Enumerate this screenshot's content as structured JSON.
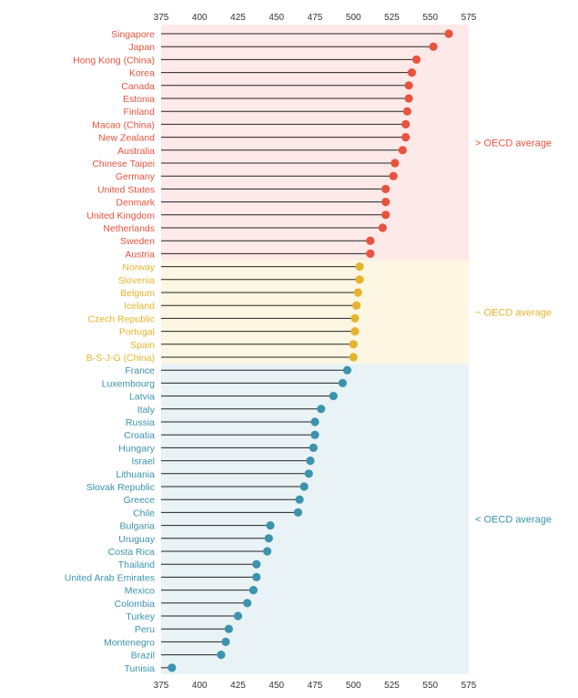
{
  "chart_data": {
    "type": "lollipop",
    "title": "",
    "xlabel": "",
    "ylabel": "",
    "xlim": [
      375,
      575
    ],
    "xticks": [
      375,
      400,
      425,
      450,
      475,
      500,
      525,
      550,
      575
    ],
    "groups": [
      {
        "key": "above",
        "label": "> OECD average",
        "color": "#e8533f",
        "band": "#fde9e7"
      },
      {
        "key": "similar",
        "label": "~ OECD average",
        "color": "#e5b42e",
        "band": "#fcf6e2"
      },
      {
        "key": "below",
        "label": "< OECD average",
        "color": "#3b93ad",
        "band": "#e9f2f5"
      }
    ],
    "rows": [
      {
        "country": "Singapore",
        "value": 562,
        "group": "above"
      },
      {
        "country": "Japan",
        "value": 552,
        "group": "above"
      },
      {
        "country": "Hong Kong (China)",
        "value": 541,
        "group": "above"
      },
      {
        "country": "Korea",
        "value": 538,
        "group": "above"
      },
      {
        "country": "Canada",
        "value": 536,
        "group": "above"
      },
      {
        "country": "Estonia",
        "value": 536,
        "group": "above"
      },
      {
        "country": "Finland",
        "value": 535,
        "group": "above"
      },
      {
        "country": "Macao (China)",
        "value": 534,
        "group": "above"
      },
      {
        "country": "New Zealand",
        "value": 534,
        "group": "above"
      },
      {
        "country": "Australia",
        "value": 532,
        "group": "above"
      },
      {
        "country": "Chinese Taipei",
        "value": 527,
        "group": "above"
      },
      {
        "country": "Germany",
        "value": 526,
        "group": "above"
      },
      {
        "country": "United States",
        "value": 521,
        "group": "above"
      },
      {
        "country": "Denmark",
        "value": 521,
        "group": "above"
      },
      {
        "country": "United Kingdom",
        "value": 521,
        "group": "above"
      },
      {
        "country": "Netherlands",
        "value": 519,
        "group": "above"
      },
      {
        "country": "Sweden",
        "value": 511,
        "group": "above"
      },
      {
        "country": "Austria",
        "value": 511,
        "group": "above"
      },
      {
        "country": "Norway",
        "value": 504,
        "group": "similar"
      },
      {
        "country": "Slovenia",
        "value": 504,
        "group": "similar"
      },
      {
        "country": "Belgium",
        "value": 503,
        "group": "similar"
      },
      {
        "country": "Iceland",
        "value": 502,
        "group": "similar"
      },
      {
        "country": "Czech Republic",
        "value": 501,
        "group": "similar"
      },
      {
        "country": "Portugal",
        "value": 501,
        "group": "similar"
      },
      {
        "country": "Spain",
        "value": 500,
        "group": "similar"
      },
      {
        "country": "B-S-J-G (China)",
        "value": 500,
        "group": "similar"
      },
      {
        "country": "France",
        "value": 496,
        "group": "below"
      },
      {
        "country": "Luxembourg",
        "value": 493,
        "group": "below"
      },
      {
        "country": "Latvia",
        "value": 487,
        "group": "below"
      },
      {
        "country": "Italy",
        "value": 479,
        "group": "below"
      },
      {
        "country": "Russia",
        "value": 475,
        "group": "below"
      },
      {
        "country": "Croatia",
        "value": 475,
        "group": "below"
      },
      {
        "country": "Hungary",
        "value": 474,
        "group": "below"
      },
      {
        "country": "Israel",
        "value": 472,
        "group": "below"
      },
      {
        "country": "Lithuania",
        "value": 471,
        "group": "below"
      },
      {
        "country": "Slovak Republic",
        "value": 468,
        "group": "below"
      },
      {
        "country": "Greece",
        "value": 465,
        "group": "below"
      },
      {
        "country": "Chile",
        "value": 464,
        "group": "below"
      },
      {
        "country": "Bulgaria",
        "value": 446,
        "group": "below"
      },
      {
        "country": "Uruguay",
        "value": 445,
        "group": "below"
      },
      {
        "country": "Costa Rica",
        "value": 444,
        "group": "below"
      },
      {
        "country": "Thailand",
        "value": 437,
        "group": "below"
      },
      {
        "country": "United Arab Emirates",
        "value": 437,
        "group": "below"
      },
      {
        "country": "Mexico",
        "value": 435,
        "group": "below"
      },
      {
        "country": "Colombia",
        "value": 431,
        "group": "below"
      },
      {
        "country": "Turkey",
        "value": 425,
        "group": "below"
      },
      {
        "country": "Peru",
        "value": 419,
        "group": "below"
      },
      {
        "country": "Montenegro",
        "value": 417,
        "group": "below"
      },
      {
        "country": "Brazil",
        "value": 414,
        "group": "below"
      },
      {
        "country": "Tunisia",
        "value": 382,
        "group": "below"
      }
    ]
  }
}
